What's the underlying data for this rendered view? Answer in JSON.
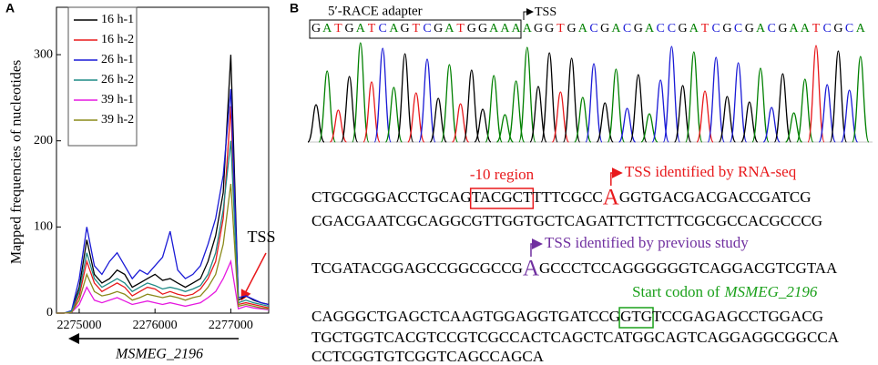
{
  "chart_data": {
    "type": "line",
    "panel_label": "A",
    "y_label": "Mapped frequencies of nucleotides",
    "annotation": "TSS",
    "gene_label": "MSMEG_2196",
    "x": [
      2274700,
      2274800,
      2274900,
      2275000,
      2275100,
      2275200,
      2275300,
      2275400,
      2275500,
      2275600,
      2275700,
      2275800,
      2275900,
      2276000,
      2276100,
      2276200,
      2276300,
      2276400,
      2276500,
      2276600,
      2276700,
      2276800,
      2276900,
      2277000,
      2277100,
      2277200,
      2277300,
      2277400,
      2277500
    ],
    "series": [
      {
        "name": "16 h-1",
        "color": "#000000",
        "values": [
          0,
          0,
          2,
          30,
          85,
          45,
          35,
          40,
          50,
          45,
          30,
          35,
          40,
          45,
          38,
          40,
          35,
          30,
          35,
          40,
          60,
          90,
          140,
          300,
          15,
          20,
          15,
          12,
          10
        ]
      },
      {
        "name": "16 h-2",
        "color": "#e8191c",
        "values": [
          0,
          0,
          1,
          20,
          60,
          35,
          25,
          30,
          35,
          30,
          20,
          25,
          30,
          28,
          22,
          25,
          22,
          20,
          22,
          28,
          40,
          60,
          110,
          240,
          10,
          12,
          10,
          8,
          6
        ]
      },
      {
        "name": "26 h-1",
        "color": "#1a1ad6",
        "values": [
          0,
          0,
          3,
          40,
          100,
          55,
          45,
          60,
          70,
          55,
          40,
          50,
          45,
          55,
          65,
          95,
          50,
          40,
          45,
          55,
          80,
          110,
          160,
          260,
          18,
          20,
          16,
          12,
          10
        ]
      },
      {
        "name": "26 h-2",
        "color": "#1f8a86",
        "values": [
          0,
          0,
          2,
          25,
          70,
          40,
          30,
          35,
          40,
          35,
          25,
          30,
          35,
          32,
          28,
          30,
          28,
          25,
          28,
          32,
          45,
          70,
          120,
          200,
          12,
          15,
          12,
          10,
          8
        ]
      },
      {
        "name": "39 h-1",
        "color": "#e619e0",
        "values": [
          0,
          0,
          1,
          10,
          30,
          15,
          12,
          15,
          18,
          14,
          10,
          12,
          14,
          12,
          10,
          12,
          10,
          8,
          10,
          12,
          18,
          25,
          40,
          60,
          5,
          8,
          6,
          5,
          4
        ]
      },
      {
        "name": "39 h-2",
        "color": "#8a8a1a",
        "values": [
          0,
          0,
          1,
          15,
          45,
          25,
          20,
          22,
          25,
          22,
          15,
          18,
          22,
          20,
          18,
          20,
          18,
          15,
          18,
          20,
          30,
          45,
          80,
          150,
          8,
          10,
          8,
          6,
          5
        ]
      }
    ],
    "xlim": [
      2274700,
      2277500
    ],
    "xticks": [
      2275000,
      2276000,
      2277000
    ],
    "ylim": [
      0,
      355
    ],
    "yticks": [
      0,
      100,
      200,
      300
    ],
    "legend": "upper-left"
  },
  "panel_b": {
    "panel_label": "B",
    "adapter_label": "5′-RACE adapter",
    "tss_label": "TSS",
    "adapter_seq": "GATGATCAGTCGATGGAAA",
    "read_seq": "AGGTGACGACGACCGATCGCGACGAATCGCA",
    "minus10_label": "-10 region",
    "rnaseq_tss_label": "TSS identified by RNA-seq",
    "previous_tss_label": "TSS identified by previous study",
    "start_codon_label": "Start codon of",
    "lines": [
      [
        "CTGCGGGACCTGCAG",
        "TACGCT",
        "TTTCGCC",
        "A",
        "GGTGACGACGACCGATCG"
      ],
      [
        "CGACGAATCGCAGGCGTTGGTGCTCAGATTCTTCTTCGCGCCACGCCCG"
      ],
      [
        "TCGATACGGAGCCGGCGCCG",
        "A",
        "GCCCTCCAGGGGGGTCAGGACGTCGTAA"
      ],
      [
        "CAGGGCTGAGCTCAAGTGGAGGTGATCCG",
        "GTG",
        "TCCGAGAGCCTGGACG"
      ],
      [
        "TGCTGGTCACGTCCGTCGCCACTCAGCTCATGGCAGTCAGGAGGCGGCCA"
      ],
      [
        "CCTCGGTGTCGGTCAGCCAGCA"
      ]
    ]
  }
}
